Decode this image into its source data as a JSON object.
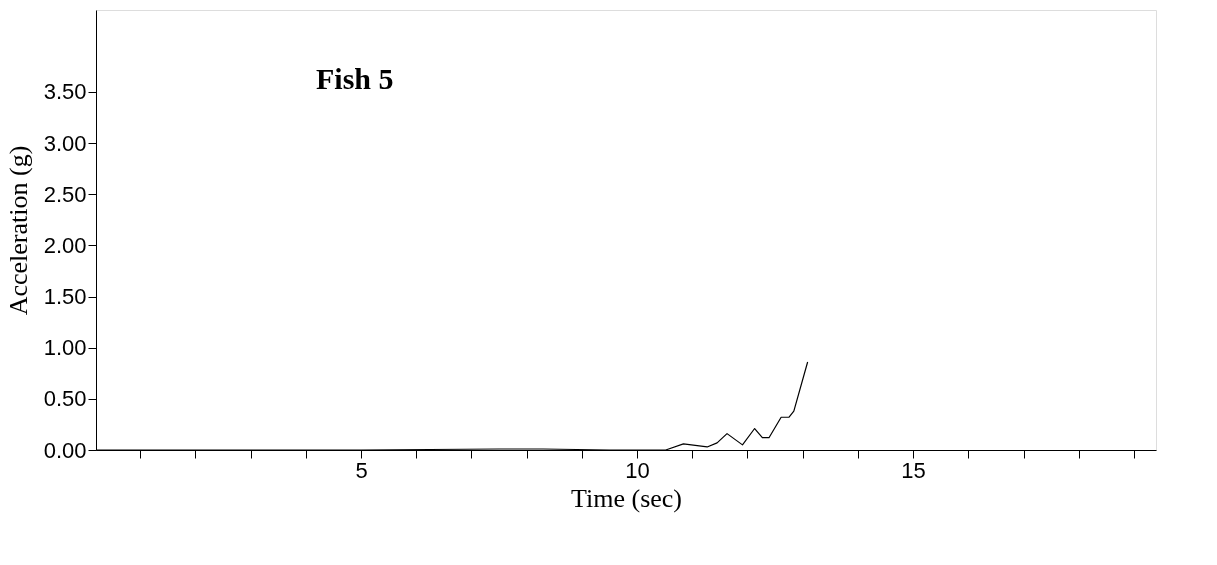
{
  "chart_data": {
    "type": "line",
    "annotations": [
      "Fish 5"
    ],
    "xlabel": "Time (sec)",
    "ylabel": "Acceleration (g)",
    "series": [
      {
        "color": "#000000",
        "x": [
          0.2,
          1.0,
          3.0,
          5.0,
          7.5,
          8.3,
          9.5,
          9.95,
          10.52,
          10.84,
          11.27,
          11.45,
          11.63,
          11.91,
          12.13,
          12.27,
          12.39,
          12.61,
          12.75,
          12.84,
          13.09
        ],
        "values": [
          0,
          0,
          0,
          0,
          0.01,
          0.01,
          0,
          0,
          0,
          0.06,
          0.03,
          0.07,
          0.16,
          0.05,
          0.21,
          0.12,
          0.12,
          0.32,
          0.32,
          0.38,
          0.86
        ]
      }
    ],
    "xlim": [
      0.2,
      19.4
    ],
    "ylim": [
      0,
      4.3
    ],
    "xticks": [
      {
        "value": 1,
        "label": null
      },
      {
        "value": 2,
        "label": null
      },
      {
        "value": 3,
        "label": null
      },
      {
        "value": 4,
        "label": null
      },
      5,
      {
        "value": 6,
        "label": null
      },
      {
        "value": 7,
        "label": null
      },
      {
        "value": 8,
        "label": null
      },
      {
        "value": 9,
        "label": null
      },
      10,
      {
        "value": 11,
        "label": null
      },
      {
        "value": 12,
        "label": null
      },
      {
        "value": 13,
        "label": null
      },
      {
        "value": 14,
        "label": null
      },
      15,
      {
        "value": 16,
        "label": null
      },
      {
        "value": 17,
        "label": null
      },
      {
        "value": 18,
        "label": null
      },
      {
        "value": 19,
        "label": null
      }
    ],
    "yticks": [
      {
        "value": 0,
        "label": "0.00"
      },
      {
        "value": 0.5,
        "label": "0.50"
      },
      {
        "value": 1,
        "label": "1.00"
      },
      {
        "value": 1.5,
        "label": "1.50"
      },
      {
        "value": 2,
        "label": "2.00"
      },
      {
        "value": 2.5,
        "label": "2.50"
      },
      {
        "value": 3,
        "label": "3.00"
      },
      {
        "value": 3.5,
        "label": "3.50"
      }
    ],
    "grid": false,
    "legend": false,
    "marker": "none",
    "line_style": "solid"
  }
}
